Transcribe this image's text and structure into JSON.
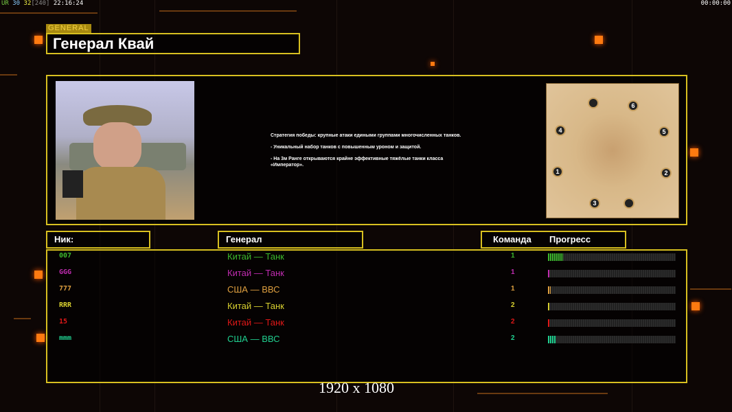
{
  "hud": {
    "left_prefix": "UR",
    "fps1": "30",
    "fps2": "32",
    "fps_bracket": "[240]",
    "clock": "22:16:24",
    "right_clock": "00:00:00"
  },
  "header": {
    "tag": "GENERAL",
    "title": "Генерал Квай"
  },
  "description": [
    "Стратегия победы: крупные атаки едиными группами многочисленных танков.",
    "- Уникальный набор танков с повышенным уроном и защитой.",
    "- На 3м Ранге открываются крайне эффективные тяжёлые танки класса «Император»."
  ],
  "map": {
    "spawn_labels": [
      "1",
      "2",
      "3",
      "4",
      "5",
      "6"
    ]
  },
  "table": {
    "headers": {
      "nick": "Ник:",
      "general": "Генерал",
      "team": "Команда",
      "progress": "Прогресс"
    },
    "rows": [
      {
        "nick": "007",
        "general": "Китай — Танк",
        "team": "1",
        "progress": 12,
        "color": "#3cb82c"
      },
      {
        "nick": "GGG",
        "general": "Китай — Танк",
        "team": "1",
        "progress": 1,
        "color": "#c02cb0"
      },
      {
        "nick": "777",
        "general": "США — ВВС",
        "team": "1",
        "progress": 2,
        "color": "#e0a040"
      },
      {
        "nick": "RRR",
        "general": "Китай — Танк",
        "team": "2",
        "progress": 1.5,
        "color": "#d8d030"
      },
      {
        "nick": "15",
        "general": "Китай — Танк",
        "team": "2",
        "progress": 1.5,
        "color": "#e01818"
      },
      {
        "nick": "mmm",
        "general": "США — ВВС",
        "team": "2",
        "progress": 6,
        "color": "#20d090"
      }
    ]
  },
  "overlay": {
    "resolution": "1920 x 1080"
  },
  "colors": {
    "frame": "#d8c020",
    "accent": "#ff7a10"
  }
}
